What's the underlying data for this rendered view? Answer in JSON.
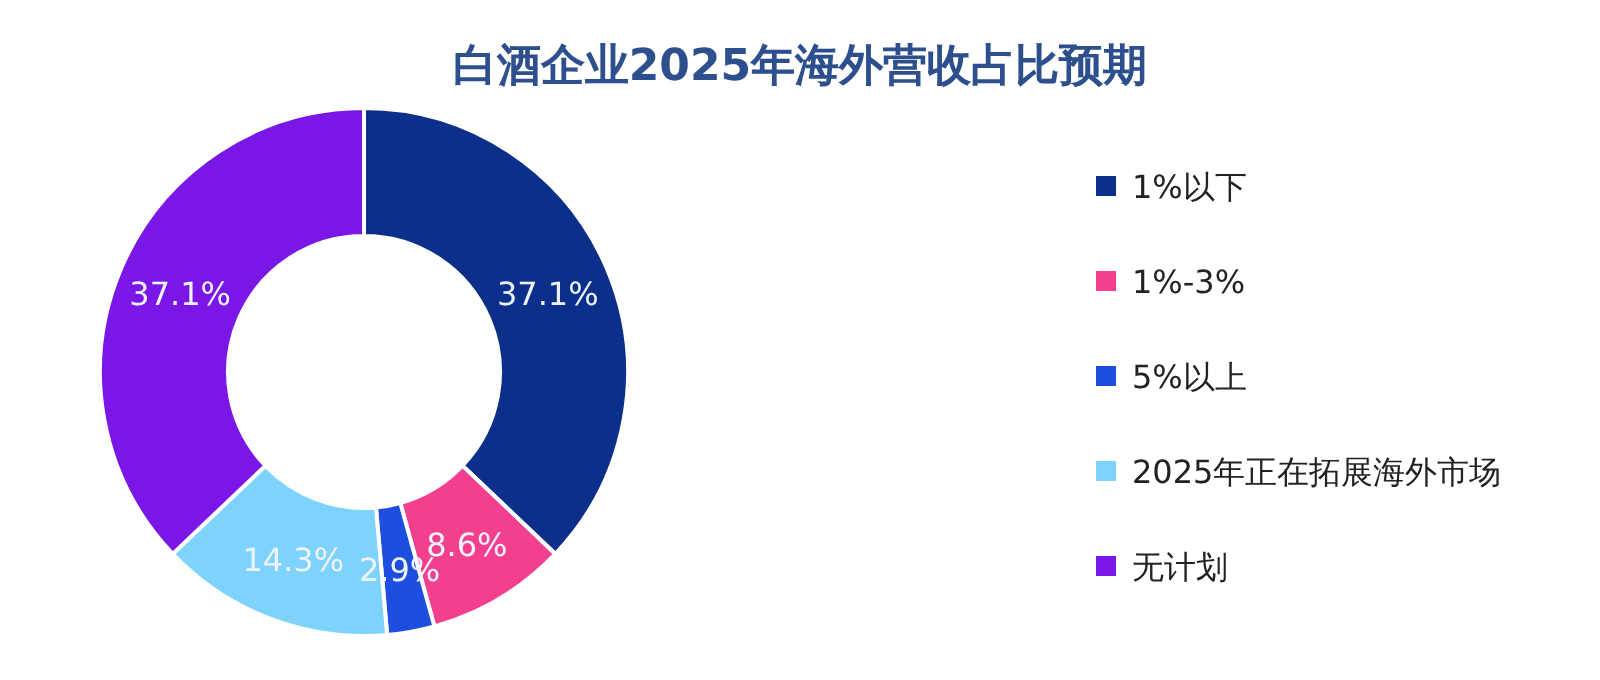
{
  "chart_data": {
    "type": "donut",
    "title": "白酒企业2025年海外营收占比预期",
    "categories": [
      "1%以下",
      "1%-3%",
      "5%以上",
      "2025年正在拓展海外市场",
      "无计划"
    ],
    "values": [
      37.1,
      8.6,
      2.9,
      14.3,
      37.1
    ],
    "value_labels": [
      "37.1%",
      "8.6%",
      "2.9%",
      "14.3%",
      "37.1%"
    ],
    "colors": [
      "#0b2f8a",
      "#f43f8e",
      "#1d4ee0",
      "#7dd3fc",
      "#7a16e6"
    ],
    "legend": "right"
  }
}
